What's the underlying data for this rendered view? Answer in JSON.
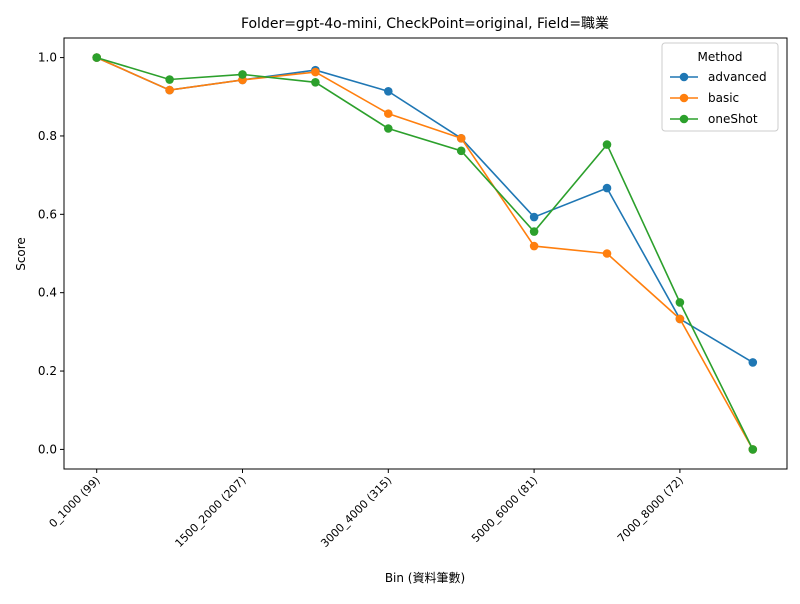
{
  "chart_data": {
    "type": "line",
    "title": "Folder=gpt-4o-mini, CheckPoint=original, Field=職業",
    "xlabel": "Bin (資料筆數)",
    "ylabel": "Score",
    "x_count": 10,
    "xtick_positions": [
      0,
      2,
      4,
      6,
      8
    ],
    "xtick_labels": [
      "0_1000 (99)",
      "1500_2000 (207)",
      "3000_4000 (315)",
      "5000_6000 (81)",
      "7000_8000 (72)"
    ],
    "yticks": [
      0.0,
      0.2,
      0.4,
      0.6,
      0.8,
      1.0
    ],
    "ytick_labels": [
      "0.0",
      "0.2",
      "0.4",
      "0.6",
      "0.8",
      "1.0"
    ],
    "ylim": [
      -0.05,
      1.05
    ],
    "legend": {
      "title": "Method",
      "position": "top-right"
    },
    "grid": false,
    "series": [
      {
        "name": "advanced",
        "color": "#1f77b4",
        "values": [
          1.0,
          0.917,
          0.943,
          0.968,
          0.914,
          0.794,
          0.593,
          0.667,
          0.333,
          0.222
        ]
      },
      {
        "name": "basic",
        "color": "#ff7f0e",
        "values": [
          1.0,
          0.917,
          0.943,
          0.963,
          0.857,
          0.794,
          0.519,
          0.5,
          0.333,
          0.0
        ]
      },
      {
        "name": "oneShot",
        "color": "#2ca02c",
        "values": [
          1.0,
          0.944,
          0.957,
          0.937,
          0.819,
          0.762,
          0.556,
          0.778,
          0.375,
          0.0
        ]
      }
    ]
  }
}
